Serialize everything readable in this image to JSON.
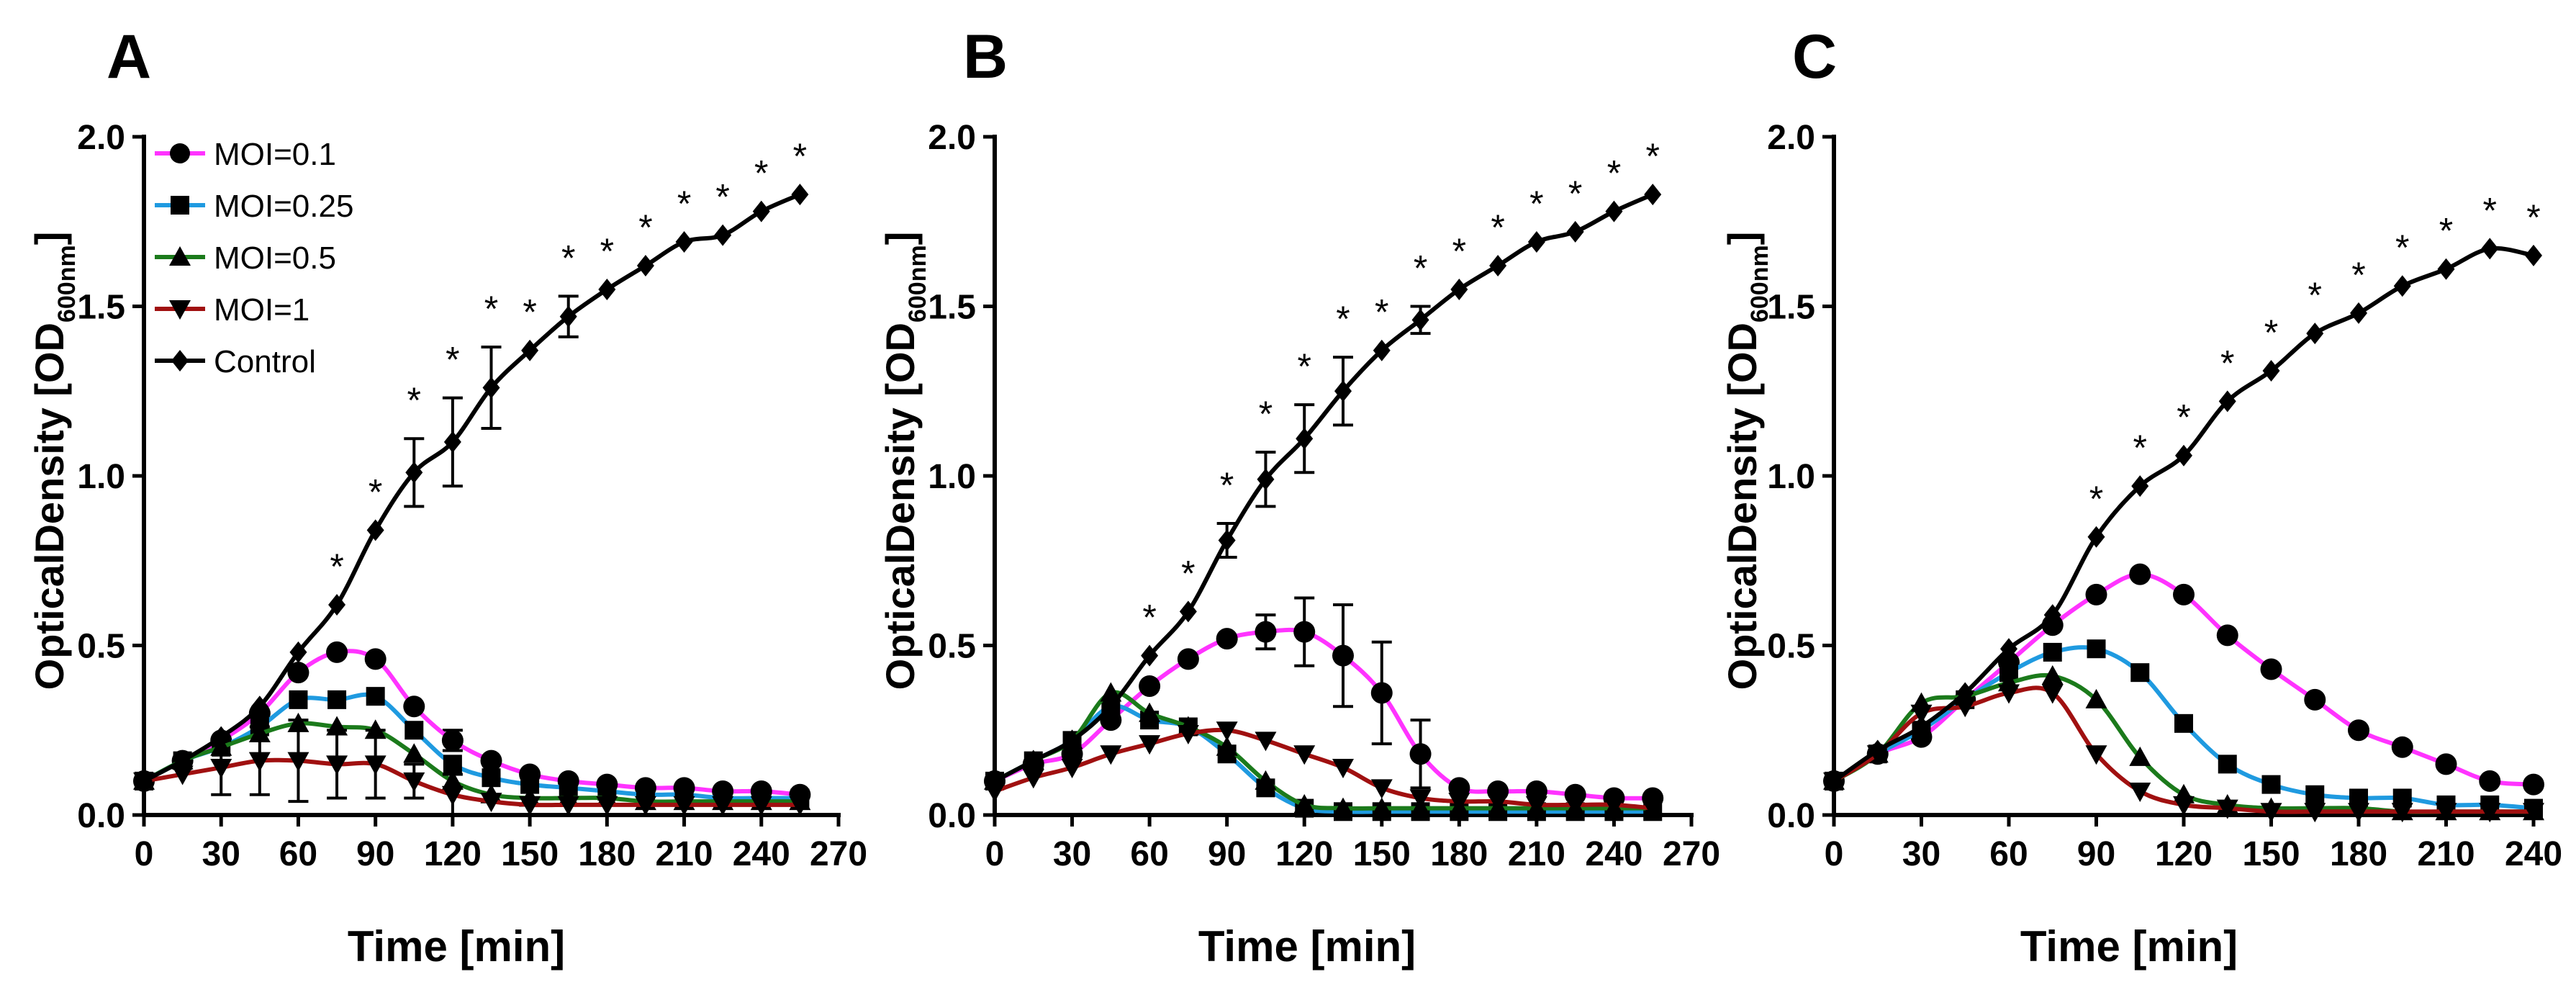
{
  "chart_data": [
    {
      "type": "line",
      "panel_label": "A",
      "xlabel": "Time [min]",
      "ylabel": {
        "main": "OpticalDensity [OD",
        "subscript": "600nm",
        "close": "]"
      },
      "xlim": [
        0,
        270
      ],
      "ylim": [
        0,
        2.0
      ],
      "x_ticks": [
        0,
        30,
        60,
        90,
        120,
        150,
        180,
        210,
        240,
        270
      ],
      "y_ticks": [
        "0.0",
        "0.5",
        "1.0",
        "1.5",
        "2.0"
      ],
      "legend": {
        "placement": "top-left"
      },
      "series": [
        {
          "name": "MOI=0.1",
          "marker": "circle",
          "color": "#ff33ff",
          "x": [
            0,
            15,
            30,
            45,
            60,
            75,
            90,
            105,
            120,
            135,
            150,
            165,
            180,
            195,
            210,
            225,
            240,
            255
          ],
          "y": [
            0.1,
            0.16,
            0.22,
            0.3,
            0.42,
            0.48,
            0.46,
            0.32,
            0.22,
            0.16,
            0.12,
            0.1,
            0.09,
            0.08,
            0.08,
            0.07,
            0.07,
            0.06
          ],
          "err": [
            0,
            0,
            0,
            0,
            0,
            0,
            0,
            0,
            0.03,
            0,
            0,
            0,
            0,
            0,
            0,
            0,
            0,
            0
          ]
        },
        {
          "name": "MOI=0.25",
          "marker": "square",
          "color": "#1f9ae0",
          "x": [
            0,
            15,
            30,
            45,
            60,
            75,
            90,
            105,
            120,
            135,
            150,
            165,
            180,
            195,
            210,
            225,
            240,
            255
          ],
          "y": [
            0.1,
            0.16,
            0.2,
            0.26,
            0.34,
            0.34,
            0.35,
            0.25,
            0.15,
            0.11,
            0.09,
            0.08,
            0.07,
            0.06,
            0.06,
            0.05,
            0.05,
            0.05
          ],
          "err": [
            0,
            0,
            0,
            0,
            0,
            0,
            0,
            0,
            0,
            0,
            0,
            0,
            0,
            0,
            0,
            0,
            0,
            0
          ]
        },
        {
          "name": "MOI=0.5",
          "marker": "triangle-up",
          "color": "#1b7a1b",
          "x": [
            0,
            15,
            30,
            45,
            60,
            75,
            90,
            105,
            120,
            135,
            150,
            165,
            180,
            195,
            210,
            225,
            240,
            255
          ],
          "y": [
            0.1,
            0.16,
            0.2,
            0.24,
            0.27,
            0.26,
            0.25,
            0.18,
            0.1,
            0.06,
            0.05,
            0.05,
            0.05,
            0.04,
            0.04,
            0.04,
            0.04,
            0.04
          ],
          "err": [
            0,
            0,
            0,
            0,
            0,
            0,
            0,
            0,
            0,
            0,
            0,
            0,
            0,
            0,
            0,
            0,
            0,
            0
          ]
        },
        {
          "name": "MOI=1",
          "marker": "triangle-down",
          "color": "#a01010",
          "x": [
            0,
            15,
            30,
            45,
            60,
            75,
            90,
            105,
            120,
            135,
            150,
            165,
            180,
            195,
            210,
            225,
            240,
            255
          ],
          "y": [
            0.1,
            0.12,
            0.14,
            0.16,
            0.16,
            0.15,
            0.15,
            0.1,
            0.06,
            0.04,
            0.03,
            0.03,
            0.03,
            0.03,
            0.03,
            0.03,
            0.03,
            0.03
          ],
          "err": [
            0,
            0,
            0.08,
            0.1,
            0.12,
            0.1,
            0.1,
            0.05,
            0.06,
            0,
            0,
            0,
            0,
            0,
            0,
            0,
            0,
            0
          ]
        },
        {
          "name": "Control",
          "marker": "diamond",
          "color": "#000000",
          "x": [
            0,
            15,
            30,
            45,
            60,
            75,
            90,
            105,
            120,
            135,
            150,
            165,
            180,
            195,
            210,
            225,
            240,
            255
          ],
          "y": [
            0.1,
            0.16,
            0.23,
            0.32,
            0.48,
            0.62,
            0.84,
            1.01,
            1.1,
            1.26,
            1.37,
            1.47,
            1.55,
            1.62,
            1.69,
            1.71,
            1.78,
            1.83
          ],
          "err": [
            0,
            0,
            0,
            0,
            0,
            0,
            0,
            0.1,
            0.13,
            0.12,
            0,
            0.06,
            0,
            0,
            0,
            0,
            0,
            0
          ]
        }
      ],
      "significance": {
        "marker": "*",
        "x": [
          75,
          90,
          105,
          120,
          135,
          150,
          165,
          180,
          195,
          210,
          225,
          240,
          255
        ]
      }
    },
    {
      "type": "line",
      "panel_label": "B",
      "xlabel": "Time [min]",
      "ylabel": {
        "main": "OpticalDensity [OD",
        "subscript": "600nm",
        "close": "]"
      },
      "xlim": [
        0,
        270
      ],
      "ylim": [
        0,
        2.0
      ],
      "x_ticks": [
        0,
        30,
        60,
        90,
        120,
        150,
        180,
        210,
        240,
        270
      ],
      "y_ticks": [
        "0.0",
        "0.5",
        "1.0",
        "1.5",
        "2.0"
      ],
      "series": [
        {
          "name": "MOI=0.1",
          "marker": "circle",
          "color": "#ff33ff",
          "x": [
            0,
            15,
            30,
            45,
            60,
            75,
            90,
            105,
            120,
            135,
            150,
            165,
            180,
            195,
            210,
            225,
            240,
            255
          ],
          "y": [
            0.1,
            0.15,
            0.18,
            0.28,
            0.38,
            0.46,
            0.52,
            0.54,
            0.54,
            0.47,
            0.36,
            0.18,
            0.08,
            0.07,
            0.07,
            0.06,
            0.05,
            0.05
          ],
          "err": [
            0,
            0,
            0,
            0,
            0,
            0,
            0,
            0.05,
            0.1,
            0.15,
            0.15,
            0.1,
            0,
            0,
            0,
            0,
            0,
            0
          ]
        },
        {
          "name": "MOI=0.25",
          "marker": "square",
          "color": "#1f9ae0",
          "x": [
            0,
            15,
            30,
            45,
            60,
            75,
            90,
            105,
            120,
            135,
            150,
            165,
            180,
            195,
            210,
            225,
            240,
            255
          ],
          "y": [
            0.1,
            0.16,
            0.22,
            0.32,
            0.28,
            0.26,
            0.18,
            0.08,
            0.02,
            0.01,
            0.01,
            0.01,
            0.01,
            0.01,
            0.01,
            0.01,
            0.01,
            0.01
          ],
          "err": [
            0,
            0,
            0,
            0,
            0,
            0,
            0,
            0,
            0,
            0,
            0,
            0,
            0,
            0,
            0,
            0,
            0,
            0
          ]
        },
        {
          "name": "MOI=0.5",
          "marker": "triangle-up",
          "color": "#1b7a1b",
          "x": [
            0,
            15,
            30,
            45,
            60,
            75,
            90,
            105,
            120,
            135,
            150,
            165,
            180,
            195,
            210,
            225,
            240,
            255
          ],
          "y": [
            0.1,
            0.16,
            0.22,
            0.36,
            0.3,
            0.26,
            0.2,
            0.1,
            0.03,
            0.02,
            0.02,
            0.02,
            0.02,
            0.02,
            0.02,
            0.02,
            0.02,
            0.02
          ],
          "err": [
            0,
            0,
            0,
            0,
            0,
            0,
            0,
            0,
            0,
            0,
            0,
            0,
            0,
            0,
            0,
            0,
            0,
            0
          ]
        },
        {
          "name": "MOI=1",
          "marker": "triangle-down",
          "color": "#a01010",
          "x": [
            0,
            15,
            30,
            45,
            60,
            75,
            90,
            105,
            120,
            135,
            150,
            165,
            180,
            195,
            210,
            225,
            240,
            255
          ],
          "y": [
            0.07,
            0.11,
            0.14,
            0.18,
            0.21,
            0.24,
            0.25,
            0.22,
            0.18,
            0.14,
            0.08,
            0.05,
            0.04,
            0.04,
            0.03,
            0.03,
            0.03,
            0.02
          ],
          "err": [
            0,
            0,
            0,
            0,
            0,
            0,
            0,
            0,
            0,
            0,
            0,
            0,
            0,
            0,
            0,
            0,
            0,
            0
          ]
        },
        {
          "name": "Control",
          "marker": "diamond",
          "color": "#000000",
          "x": [
            0,
            15,
            30,
            45,
            60,
            75,
            90,
            105,
            120,
            135,
            150,
            165,
            180,
            195,
            210,
            225,
            240,
            255
          ],
          "y": [
            0.1,
            0.16,
            0.22,
            0.32,
            0.47,
            0.6,
            0.81,
            0.99,
            1.11,
            1.25,
            1.37,
            1.46,
            1.55,
            1.62,
            1.69,
            1.72,
            1.78,
            1.83
          ],
          "err": [
            0,
            0,
            0,
            0,
            0,
            0,
            0.05,
            0.08,
            0.1,
            0.1,
            0,
            0.04,
            0,
            0,
            0,
            0,
            0,
            0
          ]
        }
      ],
      "significance": {
        "marker": "*",
        "x": [
          60,
          75,
          90,
          105,
          120,
          135,
          150,
          165,
          180,
          195,
          210,
          225,
          240,
          255
        ]
      }
    },
    {
      "type": "line",
      "panel_label": "C",
      "xlabel": "Time [min]",
      "ylabel": {
        "main": "OpticalDensity [OD",
        "subscript": "600nm",
        "close": "]"
      },
      "xlim": [
        0,
        240
      ],
      "ylim": [
        0,
        2.0
      ],
      "x_ticks": [
        0,
        30,
        60,
        90,
        120,
        150,
        180,
        210,
        240
      ],
      "y_ticks": [
        "0.0",
        "0.5",
        "1.0",
        "1.5",
        "2.0"
      ],
      "series": [
        {
          "name": "MOI=0.1",
          "marker": "circle",
          "color": "#ff33ff",
          "x": [
            0,
            15,
            30,
            45,
            60,
            75,
            90,
            105,
            120,
            135,
            150,
            165,
            180,
            195,
            210,
            225,
            240
          ],
          "y": [
            0.1,
            0.18,
            0.23,
            0.34,
            0.45,
            0.56,
            0.65,
            0.71,
            0.65,
            0.53,
            0.43,
            0.34,
            0.25,
            0.2,
            0.15,
            0.1,
            0.09
          ],
          "err": [
            0,
            0,
            0,
            0,
            0,
            0,
            0,
            0,
            0,
            0,
            0,
            0,
            0,
            0,
            0,
            0,
            0
          ]
        },
        {
          "name": "MOI=0.25",
          "marker": "square",
          "color": "#1f9ae0",
          "x": [
            0,
            15,
            30,
            45,
            60,
            75,
            90,
            105,
            120,
            135,
            150,
            165,
            180,
            195,
            210,
            225,
            240
          ],
          "y": [
            0.1,
            0.18,
            0.25,
            0.34,
            0.42,
            0.48,
            0.49,
            0.42,
            0.27,
            0.15,
            0.09,
            0.06,
            0.05,
            0.05,
            0.03,
            0.03,
            0.02
          ],
          "err": [
            0,
            0,
            0,
            0,
            0,
            0,
            0,
            0,
            0,
            0,
            0,
            0,
            0,
            0,
            0,
            0,
            0
          ]
        },
        {
          "name": "MOI=0.5",
          "marker": "triangle-up",
          "color": "#1b7a1b",
          "x": [
            0,
            15,
            30,
            45,
            60,
            75,
            90,
            105,
            120,
            135,
            150,
            165,
            180,
            195,
            210,
            225,
            240
          ],
          "y": [
            0.1,
            0.18,
            0.33,
            0.35,
            0.39,
            0.41,
            0.34,
            0.17,
            0.06,
            0.03,
            0.02,
            0.02,
            0.02,
            0.01,
            0.01,
            0.01,
            0.01
          ],
          "err": [
            0,
            0,
            0,
            0,
            0,
            0,
            0,
            0,
            0,
            0,
            0,
            0,
            0,
            0,
            0,
            0,
            0
          ]
        },
        {
          "name": "MOI=1",
          "marker": "triangle-down",
          "color": "#a01010",
          "x": [
            0,
            15,
            30,
            45,
            60,
            75,
            90,
            105,
            120,
            135,
            150,
            165,
            180,
            195,
            210,
            225,
            240
          ],
          "y": [
            0.1,
            0.18,
            0.3,
            0.32,
            0.36,
            0.36,
            0.18,
            0.07,
            0.03,
            0.02,
            0.01,
            0.01,
            0.01,
            0.01,
            0.01,
            0.01,
            0.01
          ],
          "err": [
            0,
            0,
            0,
            0,
            0,
            0,
            0,
            0,
            0,
            0,
            0,
            0,
            0,
            0,
            0,
            0,
            0
          ]
        },
        {
          "name": "Control",
          "marker": "diamond",
          "color": "#000000",
          "x": [
            0,
            15,
            30,
            45,
            60,
            75,
            90,
            105,
            120,
            135,
            150,
            165,
            180,
            195,
            210,
            225,
            240
          ],
          "y": [
            0.1,
            0.19,
            0.26,
            0.36,
            0.49,
            0.59,
            0.82,
            0.97,
            1.06,
            1.22,
            1.31,
            1.42,
            1.48,
            1.56,
            1.61,
            1.67,
            1.65
          ],
          "err": [
            0,
            0,
            0,
            0,
            0,
            0,
            0,
            0,
            0,
            0,
            0,
            0,
            0,
            0,
            0,
            0,
            0
          ]
        }
      ],
      "significance": {
        "marker": "*",
        "x": [
          90,
          105,
          120,
          135,
          150,
          165,
          180,
          195,
          210,
          225,
          240
        ]
      }
    }
  ]
}
